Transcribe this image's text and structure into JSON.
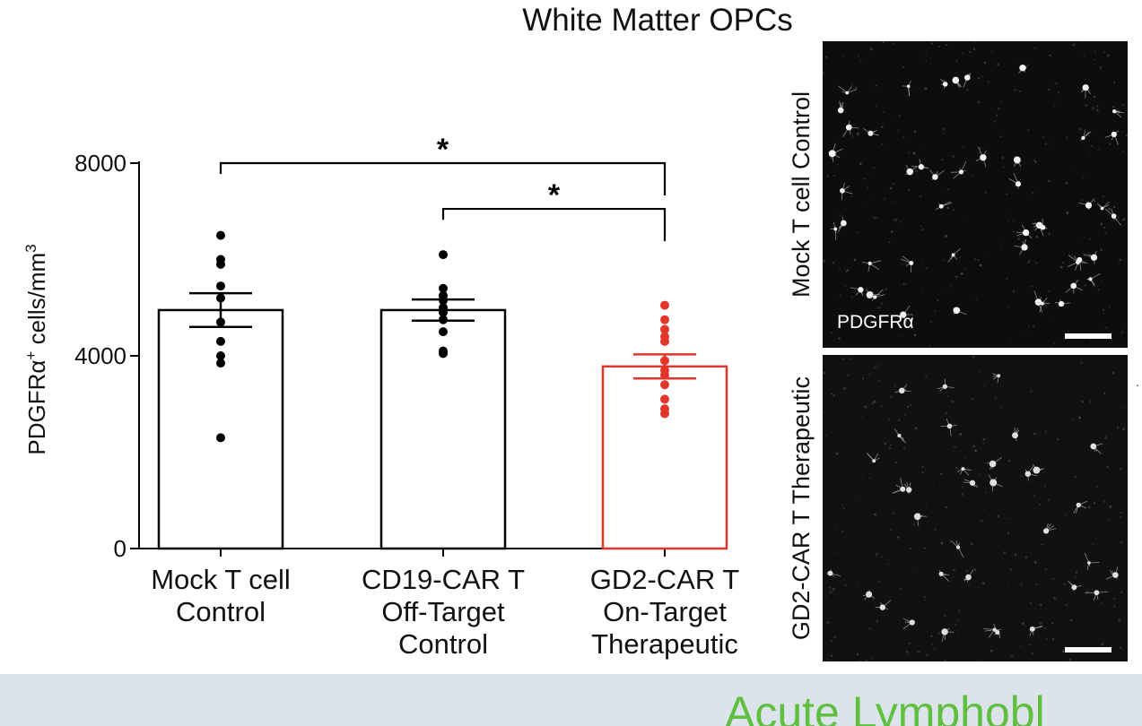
{
  "chart_data": {
    "type": "bar",
    "title": "White Matter OPCs",
    "ylabel": "PDGFRα⁺ cells/mm³",
    "ylabel_main": "PDGFRα",
    "ylabel_sup": "+",
    "ylabel_tail": " cells/mm",
    "ylabel_tail_sup": "3",
    "ylim": [
      0,
      8000
    ],
    "yticks": [
      0,
      4000,
      8000
    ],
    "ytick_labels": [
      "0",
      "4000",
      "8000"
    ],
    "grid": false,
    "categories": [
      {
        "lines": [
          "Mock T cell",
          "Control"
        ]
      },
      {
        "lines": [
          "CD19-CAR T",
          "Off-Target",
          "Control"
        ]
      },
      {
        "lines": [
          "GD2-CAR T",
          "On-Target",
          "Therapeutic"
        ]
      }
    ],
    "values": [
      4950,
      4950,
      3780
    ],
    "sem": [
      350,
      220,
      250
    ],
    "colors": [
      "#000000",
      "#000000",
      "#e2362b"
    ],
    "points": [
      [
        6500,
        6000,
        5900,
        5450,
        5200,
        4700,
        4300,
        4000,
        3850,
        2300
      ],
      [
        6100,
        5400,
        5250,
        5150,
        5000,
        4900,
        4750,
        4500,
        4100,
        4050
      ],
      [
        5050,
        4750,
        4550,
        4400,
        4300,
        3900,
        3700,
        3600,
        3400,
        3100,
        2900,
        2800
      ]
    ],
    "significance": [
      {
        "from": 0,
        "to": 2,
        "y": 8000,
        "label": "*"
      },
      {
        "from": 1,
        "to": 2,
        "y": 7050,
        "label": "*"
      }
    ]
  },
  "panels": {
    "top_label": "Mock T cell Control",
    "top_stain": "PDGFRα",
    "bottom_label": "GD2-CAR T Therapeutic"
  },
  "footer": {
    "text": "Acute Lymphobl"
  },
  "stray_mark": "."
}
